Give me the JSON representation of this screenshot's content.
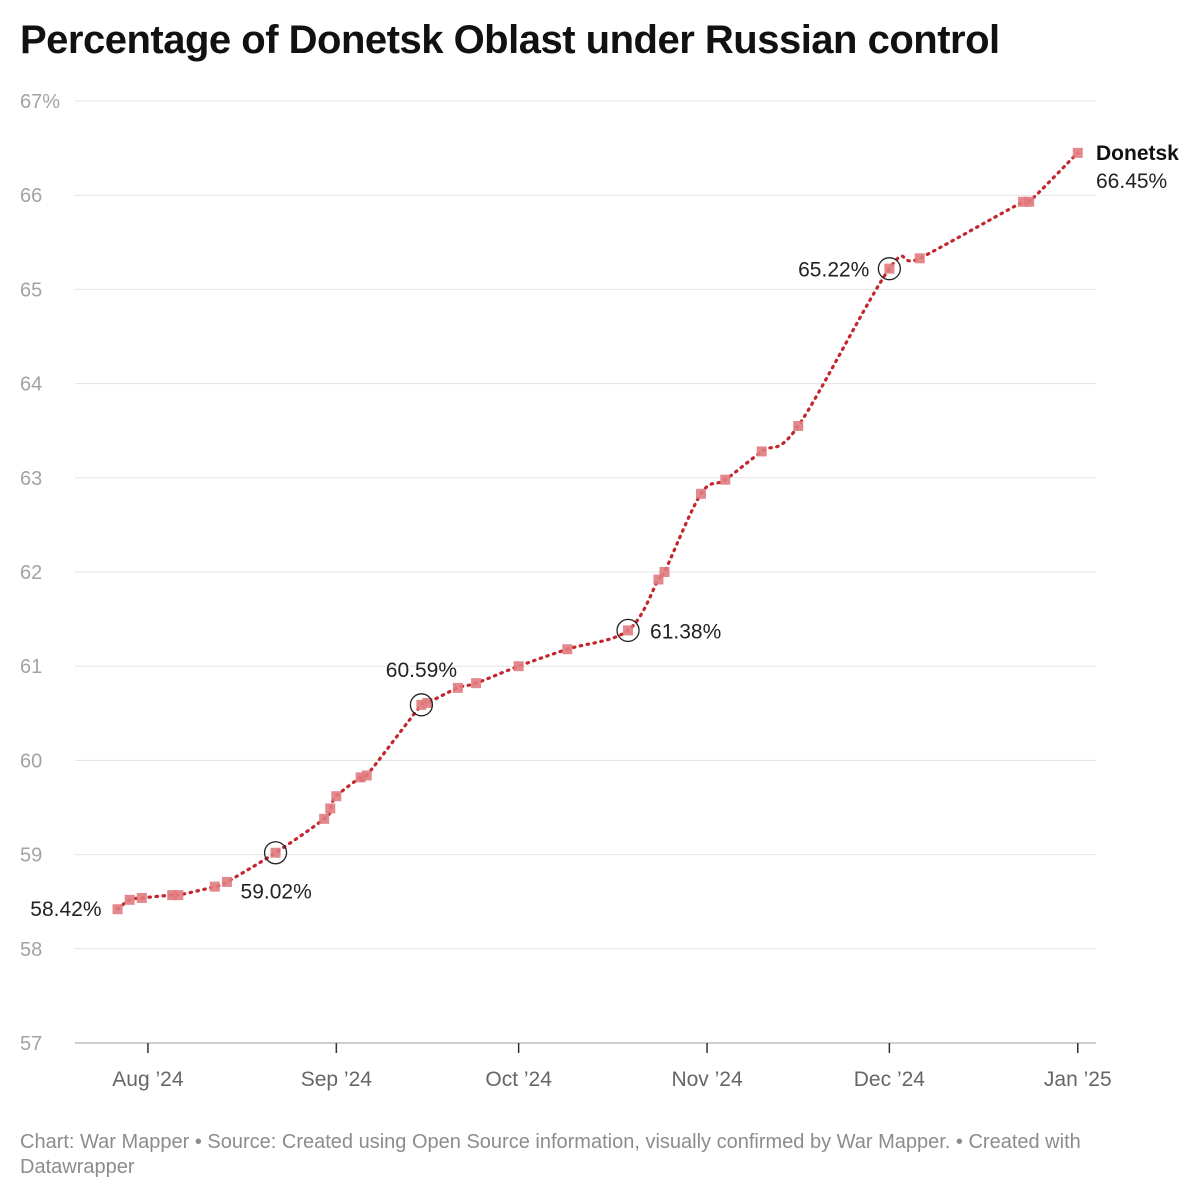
{
  "title": "Percentage of Donetsk Oblast under Russian control",
  "footer": "Chart: War Mapper • Source: Created using Open Source information, visually confirmed by War Mapper. • Created with Datawrapper",
  "colors": {
    "line": "#c4262e",
    "marker": "#e07b80",
    "grid": "#e3e3e3",
    "tick_text": "#a3a3a3"
  },
  "chart_data": {
    "type": "line",
    "ylim": [
      57,
      67
    ],
    "y_ticks": [
      57,
      58,
      59,
      60,
      61,
      62,
      63,
      64,
      65,
      66,
      67
    ],
    "y_tick_labels": [
      "57",
      "58",
      "59",
      "60",
      "61",
      "62",
      "63",
      "64",
      "65",
      "66",
      "67%"
    ],
    "x_ticks": [
      "2024-08-01",
      "2024-09-01",
      "2024-10-01",
      "2024-11-01",
      "2024-12-01",
      "2025-01-01"
    ],
    "x_tick_labels": [
      "Aug ’24",
      "Sep ’24",
      "Oct ’24",
      "Nov ’24",
      "Dec ’24",
      "Jan ’25"
    ],
    "xlim": [
      "2024-07-20",
      "2025-01-04"
    ],
    "series": [
      {
        "name": "Donetsk",
        "end_label": "66.45%",
        "points": [
          [
            "2024-07-27",
            58.42
          ],
          [
            "2024-07-29",
            58.52
          ],
          [
            "2024-07-31",
            58.54
          ],
          [
            "2024-08-05",
            58.57
          ],
          [
            "2024-08-06",
            58.57
          ],
          [
            "2024-08-12",
            58.66
          ],
          [
            "2024-08-14",
            58.71
          ],
          [
            "2024-08-22",
            59.02
          ],
          [
            "2024-08-30",
            59.38
          ],
          [
            "2024-08-31",
            59.49
          ],
          [
            "2024-09-01",
            59.62
          ],
          [
            "2024-09-05",
            59.82
          ],
          [
            "2024-09-06",
            59.84
          ],
          [
            "2024-09-15",
            60.59
          ],
          [
            "2024-09-16",
            60.61
          ],
          [
            "2024-09-21",
            60.77
          ],
          [
            "2024-09-24",
            60.82
          ],
          [
            "2024-10-01",
            61.0
          ],
          [
            "2024-10-09",
            61.18
          ],
          [
            "2024-10-19",
            61.38
          ],
          [
            "2024-10-24",
            61.92
          ],
          [
            "2024-10-25",
            62.0
          ],
          [
            "2024-10-31",
            62.83
          ],
          [
            "2024-11-04",
            62.98
          ],
          [
            "2024-11-10",
            63.28
          ],
          [
            "2024-11-16",
            63.55
          ],
          [
            "2024-12-01",
            65.22
          ],
          [
            "2024-12-06",
            65.33
          ],
          [
            "2024-12-23",
            65.93
          ],
          [
            "2024-12-24",
            65.93
          ],
          [
            "2025-01-01",
            66.45
          ]
        ]
      }
    ],
    "annotations": [
      {
        "x": "2024-07-27",
        "y": 58.42,
        "text": "58.42%",
        "circle": false
      },
      {
        "x": "2024-08-22",
        "y": 59.02,
        "text": "59.02%",
        "circle": true
      },
      {
        "x": "2024-09-15",
        "y": 60.59,
        "text": "60.59%",
        "circle": true
      },
      {
        "x": "2024-10-19",
        "y": 61.38,
        "text": "61.38%",
        "circle": true
      },
      {
        "x": "2024-12-01",
        "y": 65.22,
        "text": "65.22%",
        "circle": true
      }
    ],
    "grid": true,
    "legend": "none (direct label at line end)"
  }
}
